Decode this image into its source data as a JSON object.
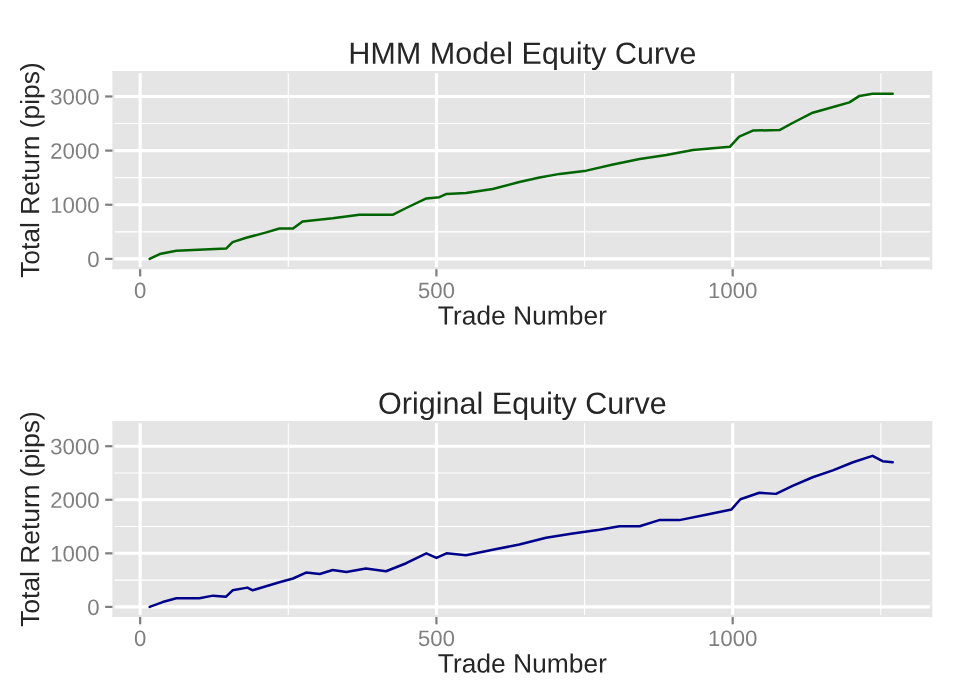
{
  "chart_data": [
    {
      "type": "line",
      "title": "HMM Model Equity Curve",
      "xlabel": "Trade Number",
      "ylabel": "Total Return (pips)",
      "xlim": [
        -45,
        1335
      ],
      "ylim": [
        -170,
        3450
      ],
      "xticks": [
        0,
        {
          "value": 250,
          "label": null
        },
        500,
        {
          "value": 750,
          "label": null
        },
        1000,
        {
          "value": 1250,
          "label": null
        }
      ],
      "yticks": [
        0,
        {
          "value": 500,
          "label": null
        },
        1000,
        {
          "value": 1500,
          "label": null
        },
        2000,
        {
          "value": 2500,
          "label": null
        },
        3000
      ],
      "grid": true,
      "legend": false,
      "series": [
        {
          "color": "#006400",
          "x": [
            16,
            33,
            61,
            145,
            156,
            179,
            213,
            235,
            258,
            274,
            325,
            370,
            426,
            449,
            483,
            505,
            517,
            550,
            595,
            640,
            674,
            708,
            753,
            798,
            843,
            888,
            933,
            995,
            1011,
            1034,
            1079,
            1101,
            1135,
            1174,
            1197,
            1214,
            1236,
            1270
          ],
          "values": [
            0,
            90,
            150,
            190,
            310,
            390,
            490,
            560,
            560,
            690,
            750,
            815,
            815,
            940,
            1117,
            1140,
            1200,
            1217,
            1290,
            1420,
            1505,
            1570,
            1630,
            1745,
            1845,
            1920,
            2010,
            2070,
            2260,
            2370,
            2380,
            2510,
            2700,
            2820,
            2890,
            3010,
            3050,
            3050
          ]
        }
      ]
    },
    {
      "type": "line",
      "title": "Original Equity Curve",
      "xlabel": "Trade Number",
      "ylabel": "Total Return (pips)",
      "xlim": [
        -45,
        1335
      ],
      "ylim": [
        -170,
        3450
      ],
      "xticks": [
        0,
        {
          "value": 250,
          "label": null
        },
        500,
        {
          "value": 750,
          "label": null
        },
        1000,
        {
          "value": 1250,
          "label": null
        }
      ],
      "yticks": [
        0,
        {
          "value": 500,
          "label": null
        },
        1000,
        {
          "value": 1500,
          "label": null
        },
        2000,
        {
          "value": 2500,
          "label": null
        },
        3000
      ],
      "grid": true,
      "legend": false,
      "series": [
        {
          "color": "#00008B",
          "x": [
            16,
            38,
            61,
            100,
            123,
            145,
            156,
            181,
            190,
            235,
            258,
            280,
            303,
            325,
            348,
            381,
            415,
            449,
            483,
            500,
            517,
            550,
            595,
            640,
            685,
            730,
            775,
            809,
            843,
            876,
            910,
            955,
            998,
            1013,
            1045,
            1073,
            1101,
            1135,
            1169,
            1203,
            1236,
            1253,
            1270
          ],
          "values": [
            0,
            90,
            160,
            160,
            210,
            190,
            310,
            360,
            310,
            460,
            530,
            640,
            615,
            690,
            650,
            715,
            665,
            815,
            1000,
            915,
            1000,
            965,
            1065,
            1165,
            1290,
            1370,
            1440,
            1505,
            1505,
            1620,
            1620,
            1720,
            1820,
            2010,
            2130,
            2110,
            2260,
            2420,
            2550,
            2700,
            2820,
            2720,
            2700
          ]
        }
      ]
    }
  ]
}
